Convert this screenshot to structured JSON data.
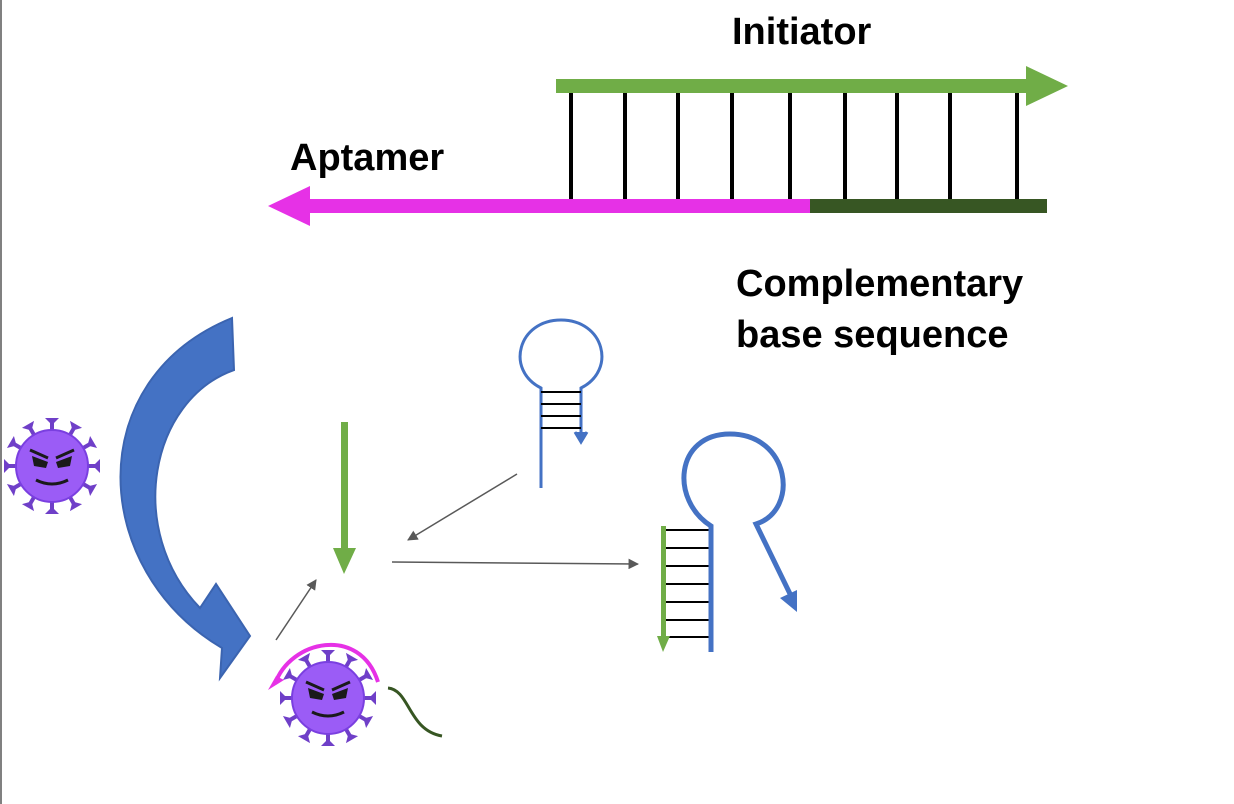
{
  "labels": {
    "initiator": "Initiator",
    "aptamer": "Aptamer",
    "complementary_line1": "Complementary",
    "complementary_line2": "base sequence"
  },
  "colors": {
    "initiator_green": "#70ad47",
    "aptamer_magenta": "#e631e6",
    "complement_dark_green": "#375623",
    "hairpin_blue": "#4472c4",
    "virus_purple": "#9b5cf6",
    "virus_spike": "#6f3fc8",
    "base_pair_black": "#000000",
    "connector_gray": "#595959"
  },
  "icons": {
    "virus": "virus-icon",
    "cycle_arrow": "curved-arrow-icon",
    "hairpin": "hairpin-dna-icon"
  }
}
